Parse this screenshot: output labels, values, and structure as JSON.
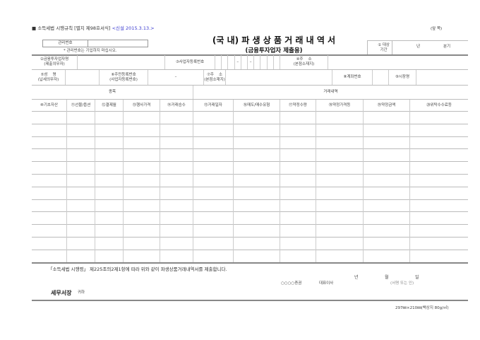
{
  "header": {
    "law_ref": "■ 소득세법 시행규칙 [별지 제98호서식]",
    "revision": "<신설 2015.3.13.>",
    "side": "(앞 쪽)"
  },
  "title": {
    "main": "(국 내) 파 생 상 품 거 래 내 역 서",
    "sub": "(금융투자업자 제출용)"
  },
  "admin": {
    "label": "관리번호",
    "note": "* 관리번호는 기입하지 마십시오."
  },
  "period": {
    "label": "① 대상\n기간",
    "year": "년",
    "half": "분기"
  },
  "row1": {
    "company": "②금융투자업자명\n(제출의무자)",
    "bizno": "③사업자등록번호",
    "dash": "–",
    "address": "④주    소\n(본점소재지)"
  },
  "row2": {
    "name": "⑤성    명\n(납세의무자)",
    "resno": "⑥주민등록번호\n(사업자등록번호)",
    "dash": "–",
    "address": "⑦주    소\n(본점소재지)",
    "account": "⑧계좌번호",
    "market": "⑨시장명"
  },
  "sections": {
    "item": "종목",
    "trade": "거래내역"
  },
  "columns": [
    "⑩기초자산",
    "⑪선물/옵션",
    "⑫결제월",
    "⑬행사가격",
    "⑭거래승수",
    "⑮거래일자",
    "⑯매도/매수유형",
    "⑰약정수량",
    "⑱약정가격등",
    "⑲약정금액",
    "⑳위탁수수료등"
  ],
  "footer": {
    "statement": "「소득세법 시행령」 제225조의2제1항에 따라 위와 같이 파생상품거래내역서를 제출합니다.",
    "year": "년",
    "month": "월",
    "day": "일",
    "company": "○○○○증권",
    "ceo": "대표이사",
    "sign": "(서명 또는 인)",
    "recipient": "세무서장",
    "honorific": "귀하",
    "paper": "297㎜×210㎜(백상지 80g/㎡)"
  },
  "colors": {
    "revision": "#3a3ad0"
  }
}
